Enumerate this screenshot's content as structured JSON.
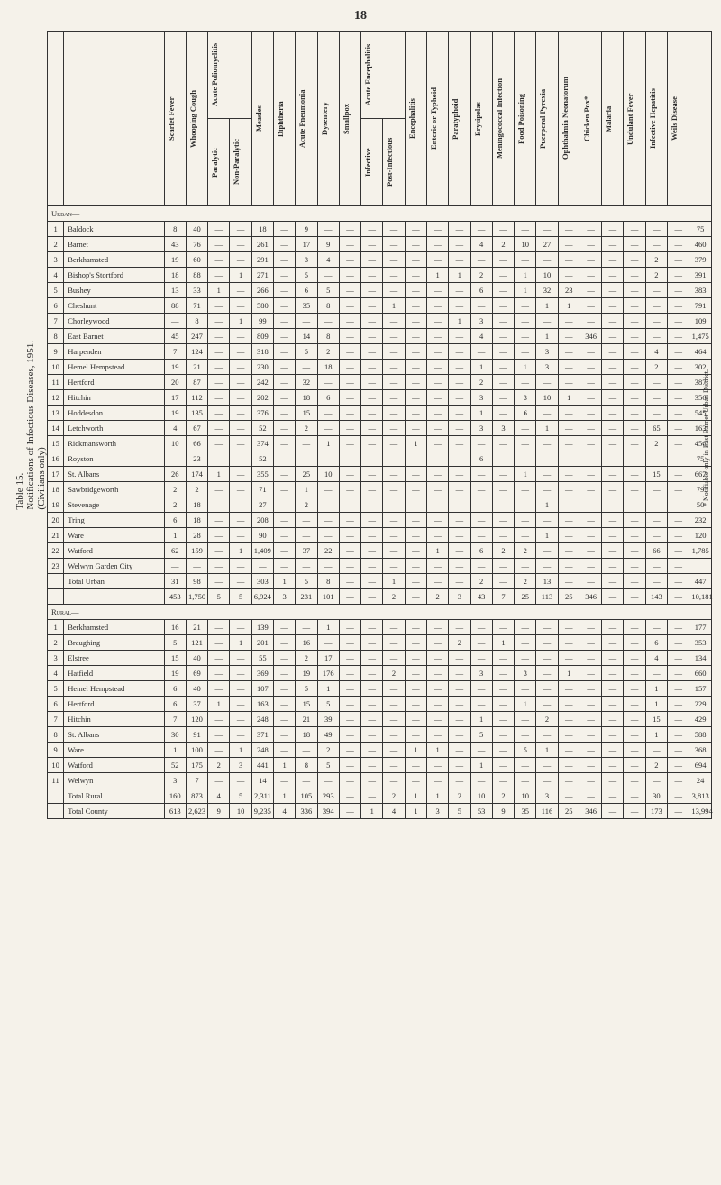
{
  "page_number": "18",
  "title_line1": "Table 15.",
  "title_line2": "Notifications of Infectious Diseases, 1951.",
  "title_line3": "(Civilians only)",
  "footnote": "* Notifiable only in East Barnet Urban District.",
  "columns": [
    "Scarlet Fever",
    "Whooping Cough",
    "Paralytic",
    "Non-Paralytic",
    "Measles",
    "Diphtheria",
    "Acute Pneumonia",
    "Dysentery",
    "Smallpox",
    "Infective",
    "Post-Infectious",
    "Encephalitis",
    "Enteric or Typhoid",
    "Paratyphoid",
    "Erysipelas",
    "Meningococcal Infection",
    "Food Poisoning",
    "Puerperal Pyrexia",
    "Ophthalmia Neonatorum",
    "Chicken Pox*",
    "Malaria",
    "Undulant Fever",
    "Infective Hepatitis",
    "Weils Disease",
    ""
  ],
  "group_headers": {
    "polio": "Acute Poliomyelitis",
    "enceph": "Acute Encephalitis"
  },
  "urban_label": "Urban—",
  "urban_rows": [
    {
      "n": "1",
      "name": "Baldock",
      "v": [
        "8",
        "40",
        "—",
        "—",
        "18",
        "—",
        "9",
        "—",
        "—",
        "—",
        "—",
        "—",
        "—",
        "—",
        "—",
        "—",
        "—",
        "—",
        "—",
        "—",
        "—",
        "—",
        "—",
        "—",
        "75"
      ]
    },
    {
      "n": "2",
      "name": "Barnet",
      "v": [
        "43",
        "76",
        "—",
        "—",
        "261",
        "—",
        "17",
        "9",
        "—",
        "—",
        "—",
        "—",
        "—",
        "—",
        "4",
        "2",
        "10",
        "27",
        "—",
        "—",
        "—",
        "—",
        "—",
        "—",
        "460"
      ]
    },
    {
      "n": "3",
      "name": "Berkhamsted",
      "v": [
        "19",
        "60",
        "—",
        "—",
        "291",
        "—",
        "3",
        "4",
        "—",
        "—",
        "—",
        "—",
        "—",
        "—",
        "—",
        "—",
        "—",
        "—",
        "—",
        "—",
        "—",
        "—",
        "2",
        "—",
        "379"
      ]
    },
    {
      "n": "4",
      "name": "Bishop's Stortford",
      "v": [
        "18",
        "88",
        "—",
        "1",
        "271",
        "—",
        "5",
        "—",
        "—",
        "—",
        "—",
        "—",
        "1",
        "1",
        "2",
        "—",
        "1",
        "10",
        "—",
        "—",
        "—",
        "—",
        "2",
        "—",
        "391"
      ]
    },
    {
      "n": "5",
      "name": "Bushey",
      "v": [
        "13",
        "33",
        "1",
        "—",
        "266",
        "—",
        "6",
        "5",
        "—",
        "—",
        "—",
        "—",
        "—",
        "—",
        "6",
        "—",
        "1",
        "32",
        "23",
        "—",
        "—",
        "—",
        "—",
        "—",
        "383"
      ]
    },
    {
      "n": "6",
      "name": "Cheshunt",
      "v": [
        "88",
        "71",
        "—",
        "—",
        "580",
        "—",
        "35",
        "8",
        "—",
        "—",
        "1",
        "—",
        "—",
        "—",
        "—",
        "—",
        "—",
        "1",
        "1",
        "—",
        "—",
        "—",
        "—",
        "—",
        "791"
      ]
    },
    {
      "n": "7",
      "name": "Chorleywood",
      "v": [
        "—",
        "8",
        "—",
        "1",
        "99",
        "—",
        "—",
        "—",
        "—",
        "—",
        "—",
        "—",
        "—",
        "1",
        "3",
        "—",
        "—",
        "—",
        "—",
        "—",
        "—",
        "—",
        "—",
        "—",
        "109"
      ]
    },
    {
      "n": "8",
      "name": "East Barnet",
      "v": [
        "45",
        "247",
        "—",
        "—",
        "809",
        "—",
        "14",
        "8",
        "—",
        "—",
        "—",
        "—",
        "—",
        "—",
        "4",
        "—",
        "—",
        "1",
        "—",
        "346",
        "—",
        "—",
        "—",
        "—",
        "1,475"
      ]
    },
    {
      "n": "9",
      "name": "Harpenden",
      "v": [
        "7",
        "124",
        "—",
        "—",
        "318",
        "—",
        "5",
        "2",
        "—",
        "—",
        "—",
        "—",
        "—",
        "—",
        "—",
        "—",
        "—",
        "3",
        "—",
        "—",
        "—",
        "—",
        "4",
        "—",
        "464"
      ]
    },
    {
      "n": "10",
      "name": "Hemel Hempstead",
      "v": [
        "19",
        "21",
        "—",
        "—",
        "230",
        "—",
        "—",
        "18",
        "—",
        "—",
        "—",
        "—",
        "—",
        "—",
        "1",
        "—",
        "1",
        "3",
        "—",
        "—",
        "—",
        "—",
        "2",
        "—",
        "302"
      ]
    },
    {
      "n": "11",
      "name": "Hertford",
      "v": [
        "20",
        "87",
        "—",
        "—",
        "242",
        "—",
        "32",
        "—",
        "—",
        "—",
        "—",
        "—",
        "—",
        "—",
        "2",
        "—",
        "—",
        "—",
        "—",
        "—",
        "—",
        "—",
        "—",
        "—",
        "387"
      ]
    },
    {
      "n": "12",
      "name": "Hitchin",
      "v": [
        "17",
        "112",
        "—",
        "—",
        "202",
        "—",
        "18",
        "6",
        "—",
        "—",
        "—",
        "—",
        "—",
        "—",
        "3",
        "—",
        "3",
        "10",
        "1",
        "—",
        "—",
        "—",
        "—",
        "—",
        "356"
      ]
    },
    {
      "n": "13",
      "name": "Hoddesdon",
      "v": [
        "19",
        "135",
        "—",
        "—",
        "376",
        "—",
        "15",
        "—",
        "—",
        "—",
        "—",
        "—",
        "—",
        "—",
        "1",
        "—",
        "6",
        "—",
        "—",
        "—",
        "—",
        "—",
        "—",
        "—",
        "545"
      ]
    },
    {
      "n": "14",
      "name": "Letchworth",
      "v": [
        "4",
        "67",
        "—",
        "—",
        "52",
        "—",
        "2",
        "—",
        "—",
        "—",
        "—",
        "—",
        "—",
        "—",
        "3",
        "3",
        "—",
        "1",
        "—",
        "—",
        "—",
        "—",
        "65",
        "—",
        "163"
      ]
    },
    {
      "n": "15",
      "name": "Rickmansworth",
      "v": [
        "10",
        "66",
        "—",
        "—",
        "374",
        "—",
        "—",
        "1",
        "—",
        "—",
        "—",
        "1",
        "—",
        "—",
        "—",
        "—",
        "—",
        "—",
        "—",
        "—",
        "—",
        "—",
        "2",
        "—",
        "456"
      ]
    },
    {
      "n": "16",
      "name": "Royston",
      "v": [
        "—",
        "23",
        "—",
        "—",
        "52",
        "—",
        "—",
        "—",
        "—",
        "—",
        "—",
        "—",
        "—",
        "—",
        "6",
        "—",
        "—",
        "—",
        "—",
        "—",
        "—",
        "—",
        "—",
        "—",
        "75"
      ]
    },
    {
      "n": "17",
      "name": "St. Albans",
      "v": [
        "26",
        "174",
        "1",
        "—",
        "355",
        "—",
        "25",
        "10",
        "—",
        "—",
        "—",
        "—",
        "—",
        "—",
        "—",
        "—",
        "1",
        "—",
        "—",
        "—",
        "—",
        "—",
        "15",
        "—",
        "667"
      ]
    },
    {
      "n": "18",
      "name": "Sawbridgeworth",
      "v": [
        "2",
        "2",
        "—",
        "—",
        "71",
        "—",
        "1",
        "—",
        "—",
        "—",
        "—",
        "—",
        "—",
        "—",
        "—",
        "—",
        "—",
        "—",
        "—",
        "—",
        "—",
        "—",
        "—",
        "—",
        "79"
      ]
    },
    {
      "n": "19",
      "name": "Stevenage",
      "v": [
        "2",
        "18",
        "—",
        "—",
        "27",
        "—",
        "2",
        "—",
        "—",
        "—",
        "—",
        "—",
        "—",
        "—",
        "—",
        "—",
        "—",
        "1",
        "—",
        "—",
        "—",
        "—",
        "—",
        "—",
        "50"
      ]
    },
    {
      "n": "20",
      "name": "Tring",
      "v": [
        "6",
        "18",
        "—",
        "—",
        "208",
        "—",
        "—",
        "—",
        "—",
        "—",
        "—",
        "—",
        "—",
        "—",
        "—",
        "—",
        "—",
        "—",
        "—",
        "—",
        "—",
        "—",
        "—",
        "—",
        "232"
      ]
    },
    {
      "n": "21",
      "name": "Ware",
      "v": [
        "1",
        "28",
        "—",
        "—",
        "90",
        "—",
        "—",
        "—",
        "—",
        "—",
        "—",
        "—",
        "—",
        "—",
        "—",
        "—",
        "—",
        "1",
        "—",
        "—",
        "—",
        "—",
        "—",
        "—",
        "120"
      ]
    },
    {
      "n": "22",
      "name": "Watford",
      "v": [
        "62",
        "159",
        "—",
        "1",
        "1,409",
        "—",
        "37",
        "22",
        "—",
        "—",
        "—",
        "—",
        "1",
        "—",
        "6",
        "2",
        "2",
        "—",
        "—",
        "—",
        "—",
        "—",
        "66",
        "—",
        "1,785"
      ]
    },
    {
      "n": "23",
      "name": "Welwyn Garden City",
      "v": [
        "—",
        "—",
        "—",
        "—",
        "—",
        "—",
        "—",
        "—",
        "—",
        "—",
        "—",
        "—",
        "—",
        "—",
        "—",
        "—",
        "—",
        "—",
        "—",
        "—",
        "—",
        "—",
        "—",
        "—",
        ""
      ]
    }
  ],
  "urban_total": {
    "name": "Total Urban",
    "v": [
      "31",
      "98",
      "—",
      "—",
      "303",
      "1",
      "5",
      "8",
      "—",
      "—",
      "1",
      "—",
      "—",
      "—",
      "2",
      "—",
      "2",
      "13",
      "—",
      "—",
      "—",
      "—",
      "—",
      "—",
      "447"
    ]
  },
  "urban_grand": {
    "name": "",
    "v": [
      "453",
      "1,750",
      "5",
      "5",
      "6,924",
      "3",
      "231",
      "101",
      "—",
      "—",
      "2",
      "—",
      "2",
      "3",
      "43",
      "7",
      "25",
      "113",
      "25",
      "346",
      "—",
      "—",
      "143",
      "—",
      "10,181"
    ]
  },
  "rural_label": "Rural—",
  "rural_rows": [
    {
      "n": "1",
      "name": "Berkhamsted",
      "v": [
        "16",
        "21",
        "—",
        "—",
        "139",
        "—",
        "—",
        "1",
        "—",
        "—",
        "—",
        "—",
        "—",
        "—",
        "—",
        "—",
        "—",
        "—",
        "—",
        "—",
        "—",
        "—",
        "—",
        "—",
        "177"
      ]
    },
    {
      "n": "2",
      "name": "Braughing",
      "v": [
        "5",
        "121",
        "—",
        "1",
        "201",
        "—",
        "16",
        "—",
        "—",
        "—",
        "—",
        "—",
        "—",
        "2",
        "—",
        "1",
        "—",
        "—",
        "—",
        "—",
        "—",
        "—",
        "6",
        "—",
        "353"
      ]
    },
    {
      "n": "3",
      "name": "Elstree",
      "v": [
        "15",
        "40",
        "—",
        "—",
        "55",
        "—",
        "2",
        "17",
        "—",
        "—",
        "—",
        "—",
        "—",
        "—",
        "—",
        "—",
        "—",
        "—",
        "—",
        "—",
        "—",
        "—",
        "4",
        "—",
        "134"
      ]
    },
    {
      "n": "4",
      "name": "Hatfield",
      "v": [
        "19",
        "69",
        "—",
        "—",
        "369",
        "—",
        "19",
        "176",
        "—",
        "—",
        "2",
        "—",
        "—",
        "—",
        "3",
        "—",
        "3",
        "—",
        "1",
        "—",
        "—",
        "—",
        "—",
        "—",
        "660"
      ]
    },
    {
      "n": "5",
      "name": "Hemel Hempstead",
      "v": [
        "6",
        "40",
        "—",
        "—",
        "107",
        "—",
        "5",
        "1",
        "—",
        "—",
        "—",
        "—",
        "—",
        "—",
        "—",
        "—",
        "—",
        "—",
        "—",
        "—",
        "—",
        "—",
        "1",
        "—",
        "157"
      ]
    },
    {
      "n": "6",
      "name": "Hertford",
      "v": [
        "6",
        "37",
        "1",
        "—",
        "163",
        "—",
        "15",
        "5",
        "—",
        "—",
        "—",
        "—",
        "—",
        "—",
        "—",
        "—",
        "1",
        "—",
        "—",
        "—",
        "—",
        "—",
        "1",
        "—",
        "229"
      ]
    },
    {
      "n": "7",
      "name": "Hitchin",
      "v": [
        "7",
        "120",
        "—",
        "—",
        "248",
        "—",
        "21",
        "39",
        "—",
        "—",
        "—",
        "—",
        "—",
        "—",
        "1",
        "—",
        "—",
        "2",
        "—",
        "—",
        "—",
        "—",
        "15",
        "—",
        "429"
      ]
    },
    {
      "n": "8",
      "name": "St. Albans",
      "v": [
        "30",
        "91",
        "—",
        "—",
        "371",
        "—",
        "18",
        "49",
        "—",
        "—",
        "—",
        "—",
        "—",
        "—",
        "5",
        "—",
        "—",
        "—",
        "—",
        "—",
        "—",
        "—",
        "1",
        "—",
        "588"
      ]
    },
    {
      "n": "9",
      "name": "Ware",
      "v": [
        "1",
        "100",
        "—",
        "1",
        "248",
        "—",
        "—",
        "2",
        "—",
        "—",
        "—",
        "1",
        "1",
        "—",
        "—",
        "—",
        "5",
        "1",
        "—",
        "—",
        "—",
        "—",
        "—",
        "—",
        "368"
      ]
    },
    {
      "n": "10",
      "name": "Watford",
      "v": [
        "52",
        "175",
        "2",
        "3",
        "441",
        "1",
        "8",
        "5",
        "—",
        "—",
        "—",
        "—",
        "—",
        "—",
        "1",
        "—",
        "—",
        "—",
        "—",
        "—",
        "—",
        "—",
        "2",
        "—",
        "694"
      ]
    },
    {
      "n": "11",
      "name": "Welwyn",
      "v": [
        "3",
        "7",
        "—",
        "—",
        "14",
        "—",
        "—",
        "—",
        "—",
        "—",
        "—",
        "—",
        "—",
        "—",
        "—",
        "—",
        "—",
        "—",
        "—",
        "—",
        "—",
        "—",
        "—",
        "—",
        "24"
      ]
    }
  ],
  "rural_total": {
    "name": "Total Rural",
    "v": [
      "160",
      "873",
      "4",
      "5",
      "2,311",
      "1",
      "105",
      "293",
      "—",
      "—",
      "2",
      "1",
      "1",
      "2",
      "10",
      "2",
      "10",
      "3",
      "—",
      "—",
      "—",
      "—",
      "30",
      "—",
      "3,813"
    ]
  },
  "county_total": {
    "name": "Total County",
    "v": [
      "613",
      "2,623",
      "9",
      "10",
      "9,235",
      "4",
      "336",
      "394",
      "—",
      "1",
      "4",
      "1",
      "3",
      "5",
      "53",
      "9",
      "35",
      "116",
      "25",
      "346",
      "—",
      "—",
      "173",
      "—",
      "13,994"
    ]
  }
}
